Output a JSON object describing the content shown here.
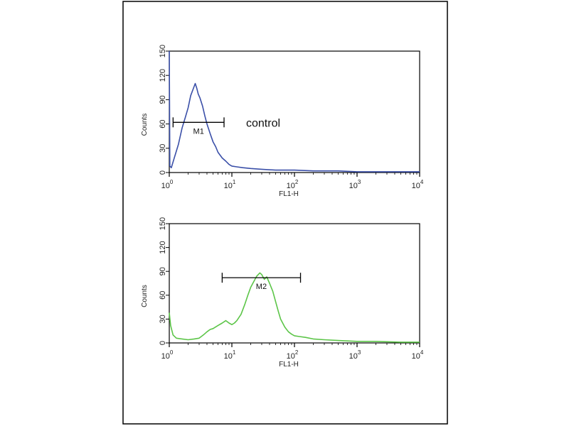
{
  "colors": {
    "frame": "#000000",
    "control_series": "#3a4fa8",
    "sample_series": "#5cc548",
    "axis": "#000000"
  },
  "chart_data": [
    {
      "type": "line",
      "xscale": "log",
      "xlim": [
        1,
        10000
      ],
      "ylim": [
        0,
        150
      ],
      "xlabel": "FL1-H",
      "ylabel": "Counts",
      "yticks": [
        "0",
        "30",
        "60",
        "90",
        "120",
        "150"
      ],
      "xticks": [
        {
          "value": 1,
          "base": "10",
          "exp": "0"
        },
        {
          "value": 10,
          "base": "10",
          "exp": "1"
        },
        {
          "value": 100,
          "base": "10",
          "exp": "2"
        },
        {
          "value": 1000,
          "base": "10",
          "exp": "3"
        },
        {
          "value": 10000,
          "base": "10",
          "exp": "4"
        }
      ],
      "annotation": "control",
      "marker": {
        "label": "M1",
        "x_start": 1.15,
        "x_end": 7.5,
        "y": 62
      },
      "series": [
        {
          "color": "#3a4fa8",
          "points": [
            [
              1,
              150
            ],
            [
              1.02,
              8
            ],
            [
              1.08,
              6
            ],
            [
              1.2,
              18
            ],
            [
              1.4,
              35
            ],
            [
              1.6,
              55
            ],
            [
              1.8,
              68
            ],
            [
              2.0,
              80
            ],
            [
              2.2,
              95
            ],
            [
              2.4,
              103
            ],
            [
              2.6,
              110
            ],
            [
              2.75,
              104
            ],
            [
              2.9,
              97
            ],
            [
              3.1,
              92
            ],
            [
              3.4,
              82
            ],
            [
              3.7,
              70
            ],
            [
              4.0,
              60
            ],
            [
              4.5,
              48
            ],
            [
              5.0,
              38
            ],
            [
              5.5,
              32
            ],
            [
              6.0,
              25
            ],
            [
              7.0,
              18
            ],
            [
              8.0,
              14
            ],
            [
              9.0,
              10
            ],
            [
              10.0,
              8
            ],
            [
              12.0,
              7
            ],
            [
              15.0,
              6
            ],
            [
              20.0,
              5
            ],
            [
              30.0,
              4
            ],
            [
              50.0,
              3
            ],
            [
              100.0,
              3
            ],
            [
              200.0,
              2
            ],
            [
              500.0,
              2
            ],
            [
              1000.0,
              1
            ],
            [
              2000.0,
              1
            ],
            [
              5000.0,
              1
            ],
            [
              10000.0,
              1
            ]
          ]
        }
      ]
    },
    {
      "type": "line",
      "xscale": "log",
      "xlim": [
        1,
        10000
      ],
      "ylim": [
        0,
        150
      ],
      "xlabel": "FL1-H",
      "ylabel": "Counts",
      "yticks": [
        "0",
        "30",
        "60",
        "90",
        "120",
        "150"
      ],
      "xticks": [
        {
          "value": 1,
          "base": "10",
          "exp": "0"
        },
        {
          "value": 10,
          "base": "10",
          "exp": "1"
        },
        {
          "value": 100,
          "base": "10",
          "exp": "2"
        },
        {
          "value": 1000,
          "base": "10",
          "exp": "3"
        },
        {
          "value": 10000,
          "base": "10",
          "exp": "4"
        }
      ],
      "marker": {
        "label": "M2",
        "x_start": 7,
        "x_end": 125,
        "y": 82
      },
      "series": [
        {
          "color": "#5cc548",
          "points": [
            [
              1,
              38
            ],
            [
              1.05,
              22
            ],
            [
              1.15,
              10
            ],
            [
              1.3,
              6
            ],
            [
              1.6,
              5
            ],
            [
              2.0,
              4
            ],
            [
              2.5,
              5
            ],
            [
              3.0,
              6
            ],
            [
              3.5,
              10
            ],
            [
              4.0,
              14
            ],
            [
              4.5,
              17
            ],
            [
              5.0,
              18
            ],
            [
              6.0,
              22
            ],
            [
              7.0,
              25
            ],
            [
              8.0,
              28
            ],
            [
              9.0,
              25
            ],
            [
              10.0,
              23
            ],
            [
              11.0,
              25
            ],
            [
              12.0,
              28
            ],
            [
              14.0,
              36
            ],
            [
              16.0,
              48
            ],
            [
              18.0,
              60
            ],
            [
              20.0,
              70
            ],
            [
              22.0,
              76
            ],
            [
              25.0,
              84
            ],
            [
              28.0,
              88
            ],
            [
              30.0,
              86
            ],
            [
              33.0,
              80
            ],
            [
              36.0,
              83
            ],
            [
              40.0,
              75
            ],
            [
              45.0,
              65
            ],
            [
              50.0,
              52
            ],
            [
              55.0,
              40
            ],
            [
              60.0,
              30
            ],
            [
              70.0,
              20
            ],
            [
              80.0,
              14
            ],
            [
              90.0,
              11
            ],
            [
              100.0,
              9
            ],
            [
              120.0,
              8
            ],
            [
              150.0,
              7
            ],
            [
              200.0,
              5
            ],
            [
              300.0,
              4
            ],
            [
              500.0,
              3
            ],
            [
              1000.0,
              2
            ],
            [
              2000.0,
              2
            ],
            [
              5000.0,
              1
            ],
            [
              10000.0,
              1
            ]
          ]
        }
      ]
    }
  ]
}
